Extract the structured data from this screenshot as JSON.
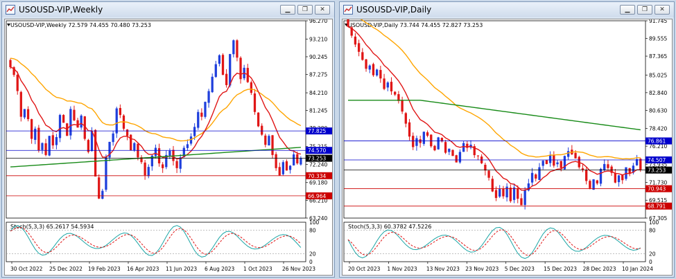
{
  "windows": [
    {
      "id": "weekly",
      "title": "USOUSD-VIP,Weekly",
      "header": "USOUSD-VIP,Weekly  72.579 74.455 70.480 73.253",
      "price_scale": [
        "96.270",
        "93.210",
        "90.245",
        "87.275",
        "84.210",
        "81.245",
        "78.280",
        "75.215",
        "72.240",
        "69.180",
        "66.210",
        "63.240"
      ],
      "price_range": [
        63.24,
        96.27
      ],
      "hlines": [
        {
          "value": 77.825,
          "label": "77.825",
          "color": "#0000cc"
        },
        {
          "value": 74.57,
          "label": "74.570",
          "color": "#0000cc"
        },
        {
          "value": 73.253,
          "label": "73.253",
          "color": "#000000"
        },
        {
          "value": 70.334,
          "label": "70.334",
          "color": "#cc0000"
        },
        {
          "value": 66.964,
          "label": "66.964",
          "color": "#cc0000"
        }
      ],
      "date_labels": [
        "30 Oct 2022",
        "25 Dec 2022",
        "19 Feb 2023",
        "16 Apr 2023",
        "11 Jun 2023",
        "6 Aug 2023",
        "1 Oct 2023",
        "26 Nov 2023"
      ],
      "stoch": {
        "header": "Stoch(5,3,3) 65.2617 54.5934",
        "scale": [
          "100",
          "80",
          "20",
          "0"
        ]
      },
      "colors": {
        "bull": "#1f3fdc",
        "bear": "#e01616",
        "ma_fast": "#e01616",
        "ma_slow": "#ffa500",
        "ma_long": "#178a17",
        "stoch_main": "#1aa5a5",
        "stoch_signal": "#e01616"
      }
    },
    {
      "id": "daily",
      "title": "USOUSD-VIP,Daily",
      "header": "USOUSD-VIP,Daily  73.744 74.455 72.827 73.253",
      "price_scale": [
        "91.745",
        "89.555",
        "87.365",
        "85.025",
        "82.840",
        "80.630",
        "78.420",
        "76.210",
        "73.935",
        "71.730",
        "69.515",
        "67.305"
      ],
      "price_range": [
        67.305,
        91.745
      ],
      "hlines": [
        {
          "value": 76.861,
          "label": "76.861",
          "color": "#0000cc"
        },
        {
          "value": 74.507,
          "label": "74.507",
          "color": "#0000cc"
        },
        {
          "value": 73.253,
          "label": "73.253",
          "color": "#000000"
        },
        {
          "value": 70.943,
          "label": "70.943",
          "color": "#cc0000"
        },
        {
          "value": 68.791,
          "label": "68.791",
          "color": "#cc0000"
        }
      ],
      "date_labels": [
        "20 Oct 2023",
        "1 Nov 2023",
        "13 Nov 2023",
        "23 Nov 2023",
        "5 Dec 2023",
        "15 Dec 2023",
        "28 Dec 2023",
        "10 Jan 2024"
      ],
      "stoch": {
        "header": "Stoch(5,3,3) 60.3782 47.5226",
        "scale": [
          "100",
          "80",
          "20",
          "0"
        ]
      },
      "colors": {
        "bull": "#1f3fdc",
        "bear": "#e01616",
        "ma_fast": "#e01616",
        "ma_slow": "#ffa500",
        "ma_long": "#178a17",
        "stoch_main": "#1aa5a5",
        "stoch_signal": "#e01616"
      }
    }
  ],
  "window_buttons": {
    "minimize": "▁",
    "restore": "❐",
    "close": "✕"
  }
}
